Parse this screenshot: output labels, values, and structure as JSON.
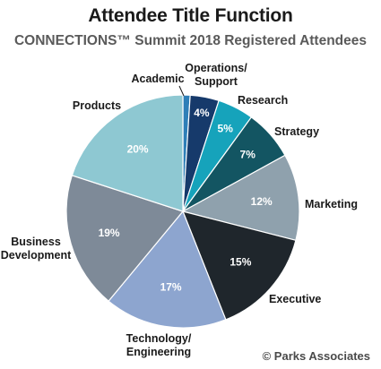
{
  "title": "Attendee Title Function",
  "subtitle": "CONNECTIONS™ Summit 2018 Registered Attendees",
  "copyright": "© Parks Associates",
  "chart_data": {
    "type": "pie",
    "title": "Attendee Title Function",
    "subtitle": "CONNECTIONS™ Summit 2018 Registered Attendees",
    "slices": [
      {
        "name": "Academic",
        "label_lines": [
          "Academic"
        ],
        "value": 1,
        "pct_label": "",
        "color": "#2e7fb8",
        "text_color": "#ffffff"
      },
      {
        "name": "Operations/Support",
        "label_lines": [
          "Operations/",
          "Support"
        ],
        "value": 4,
        "pct_label": "4%",
        "color": "#163a6b",
        "text_color": "#ffffff"
      },
      {
        "name": "Research",
        "label_lines": [
          "Research"
        ],
        "value": 5,
        "pct_label": "5%",
        "color": "#16a3bb",
        "text_color": "#ffffff"
      },
      {
        "name": "Strategy",
        "label_lines": [
          "Strategy"
        ],
        "value": 7,
        "pct_label": "7%",
        "color": "#135562",
        "text_color": "#ffffff"
      },
      {
        "name": "Marketing",
        "label_lines": [
          "Marketing"
        ],
        "value": 12,
        "pct_label": "12%",
        "color": "#8fa1ad",
        "text_color": "#ffffff"
      },
      {
        "name": "Executive",
        "label_lines": [
          "Executive"
        ],
        "value": 15,
        "pct_label": "15%",
        "color": "#1f262c",
        "text_color": "#ffffff"
      },
      {
        "name": "Technology/Engineering",
        "label_lines": [
          "Technology/",
          "Engineering"
        ],
        "value": 17,
        "pct_label": "17%",
        "color": "#8da5cf",
        "text_color": "#ffffff"
      },
      {
        "name": "Business Development",
        "label_lines": [
          "Business",
          "Development"
        ],
        "value": 19,
        "pct_label": "19%",
        "color": "#7e8a98",
        "text_color": "#ffffff"
      },
      {
        "name": "Products",
        "label_lines": [
          "Products"
        ],
        "value": 20,
        "pct_label": "20%",
        "color": "#8ec8d2",
        "text_color": "#ffffff"
      }
    ]
  }
}
